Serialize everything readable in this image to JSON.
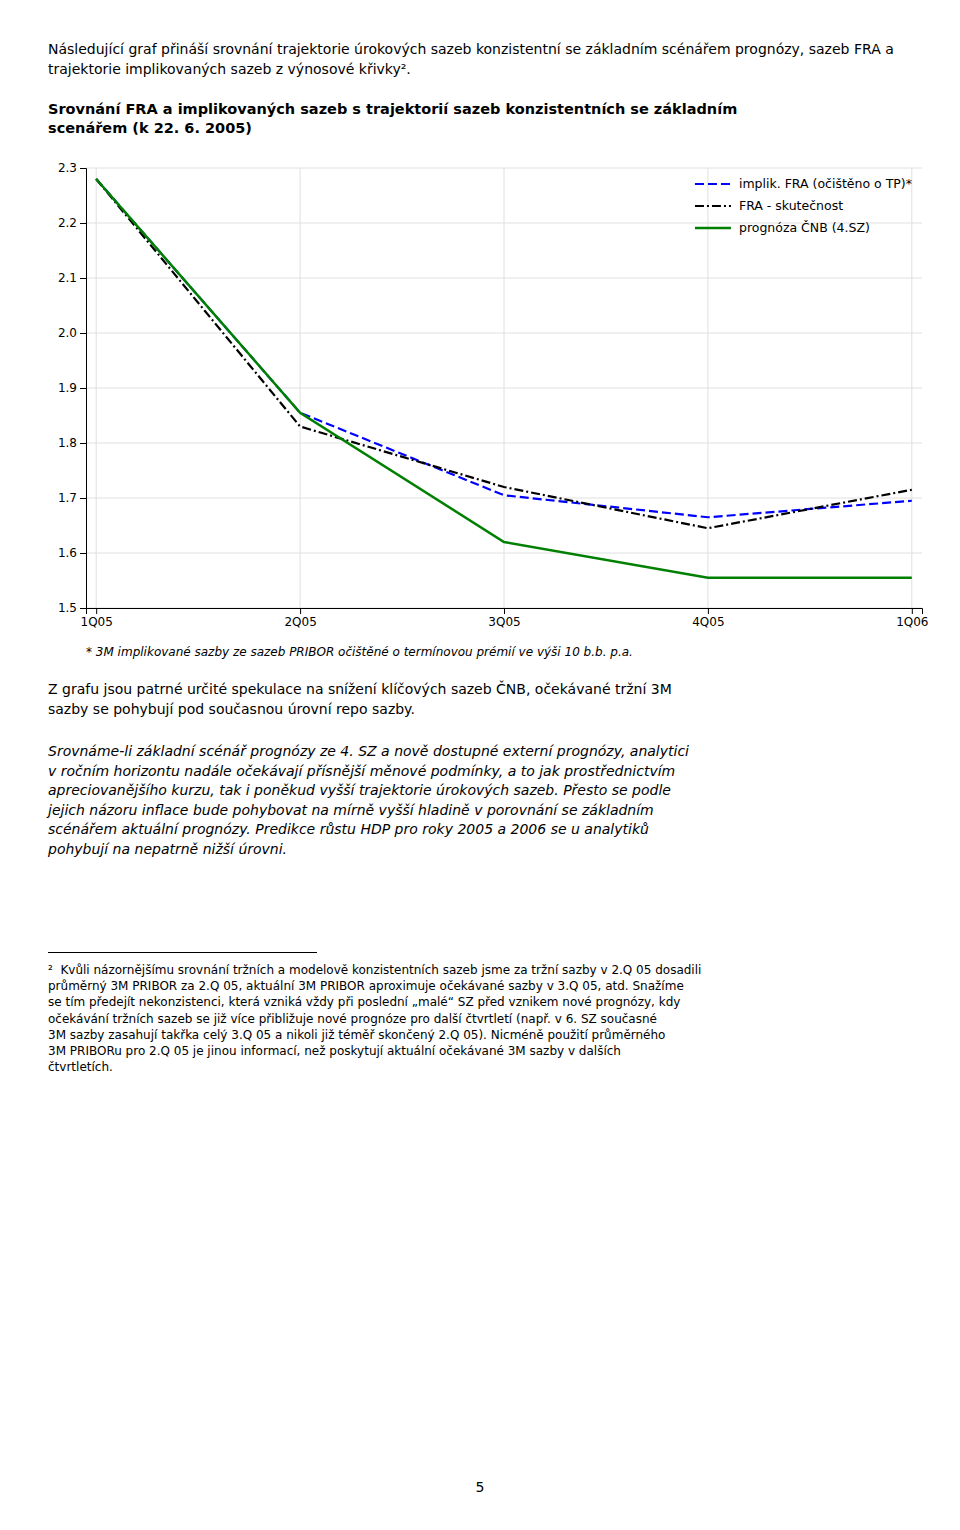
{
  "header": "Následující graf přináší srovnání trajektorie úrokových sazeb konzistentní se základním scénářem prognózy, sazeb FRA a trajektorie implikovaných sazeb z výnosové křivky².",
  "chart_data": {
    "type": "line",
    "title": "Srovnání FRA a implikovaných sazeb s trajektorií sazeb konzistentních se základním\nscenářem (k 22. 6. 2005)",
    "categories": [
      "1Q05",
      "2Q05",
      "3Q05",
      "4Q05",
      "1Q06"
    ],
    "series": [
      {
        "name": "implik. FRA (očištěno o TP)*",
        "color": "#0000FF",
        "line_style": "dashed",
        "values": [
          2.28,
          1.855,
          1.705,
          1.665,
          1.695
        ]
      },
      {
        "name": "FRA - skutečnost",
        "color": "#000000",
        "line_style": "dashdot",
        "values": [
          2.28,
          1.83,
          1.72,
          1.645,
          1.715
        ]
      },
      {
        "name": "prognóza ČNB (4.SZ)",
        "color": "#008000",
        "line_style": "solid",
        "values": [
          2.28,
          1.855,
          1.62,
          1.555,
          1.555
        ]
      }
    ],
    "ylim": [
      1.5,
      2.3
    ],
    "yticks": [
      1.5,
      1.6,
      1.7,
      1.8,
      1.9,
      {
        "value": 2.0,
        "label": "2.0"
      },
      2.1,
      2.2,
      2.3
    ],
    "grid": true,
    "legend": "upper right",
    "annotations": [
      "* 3M implikované sazby ze sazeb PRIBOR očištěné o termínovou prémií ve výši 10 b.b. p.a."
    ]
  },
  "paragraphs": [
    "Z grafu jsou patrné určité spekulace na snížení klíčových sazeb ČNB, očekávané tržní 3M\nsazby se pohybují pod současnou úrovní repo sazby.",
    "Srovnáme-li základní scénář prognózy ze 4. SZ a nově dostupné externí prognózy, analytici\nv ročním horizontu nadále očekávají přísnější měnové podmínky, a to jak prostřednictvím\napreciovanějšího kurzu, tak i poněkud vyšší trajektorie úrokových sazeb. Přesto se podle\njejich názoru inflace bude pohybovat na mírně vyšší hladině v porovnání se základním\nscénářem aktuální prognózy. Predikce růstu HDP pro roky 2005 a 2006 se u analytiků\npohybují na nepatrně nižší úrovni."
  ],
  "footnote": "²  Kvůli názornějšímu srovnání tržních a modelově konzistentních sazeb jsme za tržní sazby v 2.Q 05 dosadili\nprůměrný 3M PRIBOR za 2.Q 05, aktuální 3M PRIBOR aproximuje očekávané sazby v 3.Q 05, atd. Snažíme\nse tím předejít nekonzistenci, která vzniká vždy při poslední „malé“ SZ před vznikem nové prognózy, kdy\nočekávání tržních sazeb se již více přibližuje nové prognóze pro další čtvrtletí (např. v 6. SZ současné\n3M sazby zasahují takřka celý 3.Q 05 a nikoli již téměř skončený 2.Q 05). Nicméně použití průměrného\n3M PRIBORu pro 2.Q 05 je jinou informací, než poskytují aktuální očekávané 3M sazby v dalších\nčtvrtletích.",
  "page_number": "5"
}
